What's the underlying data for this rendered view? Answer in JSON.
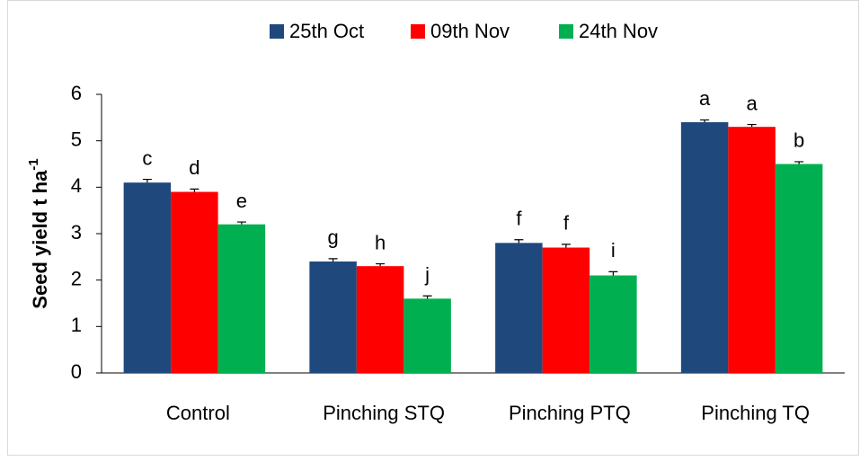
{
  "chart_data": {
    "type": "bar",
    "ylabel": "Seed yield t ha",
    "ylabel_sup": "-1",
    "categories": [
      "Control",
      "Pinching STQ",
      "Pinching PTQ",
      "Pinching TQ"
    ],
    "series": [
      {
        "name": "25th Oct",
        "color": "#1f497d",
        "values": [
          4.1,
          2.4,
          2.8,
          5.4
        ],
        "errors": [
          0.07,
          0.06,
          0.07,
          0.05
        ],
        "labels": [
          "c",
          "g",
          "f",
          "a"
        ]
      },
      {
        "name": "09th Nov",
        "color": "#ff0000",
        "values": [
          3.9,
          2.3,
          2.7,
          5.3
        ],
        "errors": [
          0.06,
          0.05,
          0.07,
          0.05
        ],
        "labels": [
          "d",
          "h",
          "f",
          "a"
        ]
      },
      {
        "name": "24th Nov",
        "color": "#00b050",
        "values": [
          3.2,
          1.6,
          2.1,
          4.5
        ],
        "errors": [
          0.05,
          0.06,
          0.08,
          0.05
        ],
        "labels": [
          "e",
          "j",
          "i",
          "b"
        ]
      }
    ],
    "ylim": [
      0,
      6
    ],
    "yticks": [
      0,
      1,
      2,
      3,
      4,
      5,
      6
    ],
    "grid": false,
    "legend": "top"
  }
}
